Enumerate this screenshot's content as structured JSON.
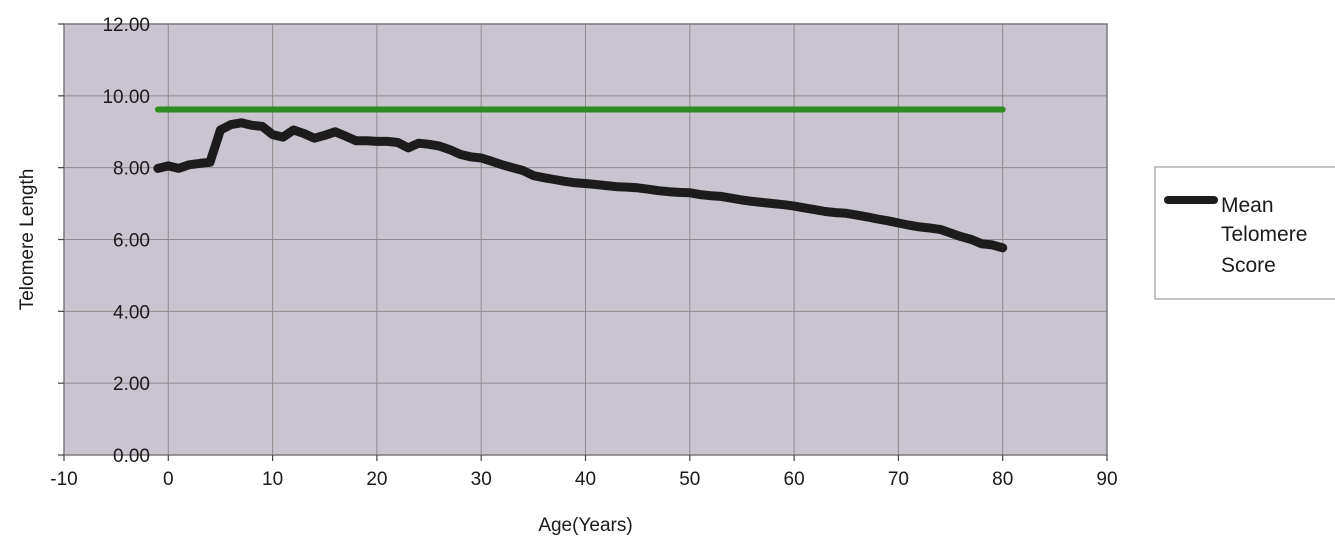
{
  "chart_data": {
    "type": "line",
    "title": "",
    "xlabel": "Age(Years)",
    "ylabel": "Telomere Length",
    "xlim": [
      -10,
      90
    ],
    "ylim": [
      0,
      12
    ],
    "xticks": [
      -10,
      0,
      10,
      20,
      30,
      40,
      50,
      60,
      70,
      80,
      90
    ],
    "yticks": [
      0,
      2,
      4,
      6,
      8,
      10,
      12
    ],
    "ytick_format": "fixed2",
    "grid": "horizontal and vertical",
    "legend_position": "right",
    "colors": {
      "plot_background": "#c9c4cf",
      "grid": "#8c8c8c",
      "frame": "#7a7a7a"
    },
    "series": [
      {
        "name": "Mean Telomere Score",
        "color": "#1c1c1c",
        "legend_lines": [
          "Mean",
          "Telomere",
          "Score"
        ],
        "x": [
          -1,
          0,
          1,
          2,
          3,
          4,
          5,
          6,
          7,
          8,
          9,
          10,
          11,
          12,
          13,
          14,
          15,
          16,
          17,
          18,
          19,
          20,
          21,
          22,
          23,
          24,
          25,
          26,
          27,
          28,
          29,
          30,
          31,
          32,
          33,
          34,
          35,
          36,
          37,
          38,
          39,
          40,
          41,
          42,
          43,
          44,
          45,
          46,
          47,
          48,
          49,
          50,
          51,
          52,
          53,
          54,
          55,
          56,
          57,
          58,
          59,
          60,
          61,
          62,
          63,
          64,
          65,
          66,
          67,
          68,
          69,
          70,
          71,
          72,
          73,
          74,
          75,
          76,
          77,
          78,
          79,
          80
        ],
        "y": [
          7.98,
          8.05,
          7.98,
          8.08,
          8.12,
          8.15,
          9.05,
          9.2,
          9.25,
          9.18,
          9.15,
          8.92,
          8.85,
          9.05,
          8.95,
          8.82,
          8.9,
          9.0,
          8.88,
          8.75,
          8.75,
          8.73,
          8.73,
          8.7,
          8.55,
          8.68,
          8.65,
          8.6,
          8.5,
          8.37,
          8.3,
          8.27,
          8.18,
          8.08,
          8.0,
          7.92,
          7.78,
          7.72,
          7.67,
          7.62,
          7.58,
          7.56,
          7.53,
          7.5,
          7.47,
          7.46,
          7.44,
          7.4,
          7.36,
          7.33,
          7.31,
          7.3,
          7.25,
          7.22,
          7.2,
          7.15,
          7.1,
          7.06,
          7.03,
          7.0,
          6.97,
          6.93,
          6.88,
          6.83,
          6.78,
          6.75,
          6.73,
          6.68,
          6.63,
          6.57,
          6.52,
          6.46,
          6.4,
          6.35,
          6.32,
          6.28,
          6.18,
          6.08,
          6.0,
          5.88,
          5.85,
          5.77
        ]
      },
      {
        "color": "#2e8b22",
        "x": [
          -1,
          80
        ],
        "y": [
          9.62,
          9.62
        ]
      }
    ]
  }
}
